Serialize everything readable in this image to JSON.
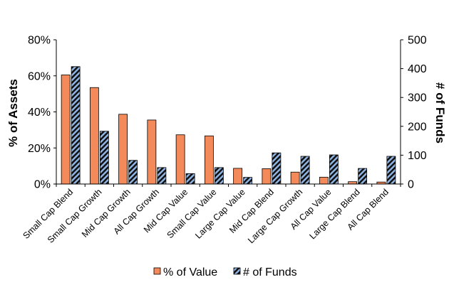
{
  "chart_data": {
    "type": "bar",
    "title": "",
    "categories": [
      "Small Cap Blend",
      "Small Cap Growth",
      "Mid Cap Growth",
      "All Cap Growth",
      "Mid Cap Value",
      "Small Cap Value",
      "Large Cap Value",
      "Mid Cap Blend",
      "Large Cap Growth",
      "All Cap Value",
      "Large Cap Blend",
      "All Cap Blend"
    ],
    "series": [
      {
        "name": "% of Value",
        "axis": "left",
        "color": "#F4895A",
        "values": [
          60.5,
          53.5,
          38.7,
          35.5,
          27.3,
          26.7,
          8.7,
          8.5,
          6.6,
          3.8,
          1.3,
          1.1
        ]
      },
      {
        "name": "# of Funds",
        "axis": "right",
        "color": "#8FB4E3",
        "pattern": "diagonal-stripes",
        "values": [
          407,
          183,
          82,
          57,
          36,
          57,
          23,
          108,
          96,
          101,
          54,
          96
        ]
      }
    ],
    "ylabel": "% of Assets",
    "y2label": "# of Funds",
    "ylim": [
      0,
      80
    ],
    "y2lim": [
      0,
      500
    ],
    "yticks": [
      "0%",
      "20%",
      "40%",
      "60%",
      "80%"
    ],
    "y2ticks": [
      "0",
      "100",
      "200",
      "300",
      "400",
      "500"
    ],
    "grid": false,
    "legend_position": "bottom"
  }
}
